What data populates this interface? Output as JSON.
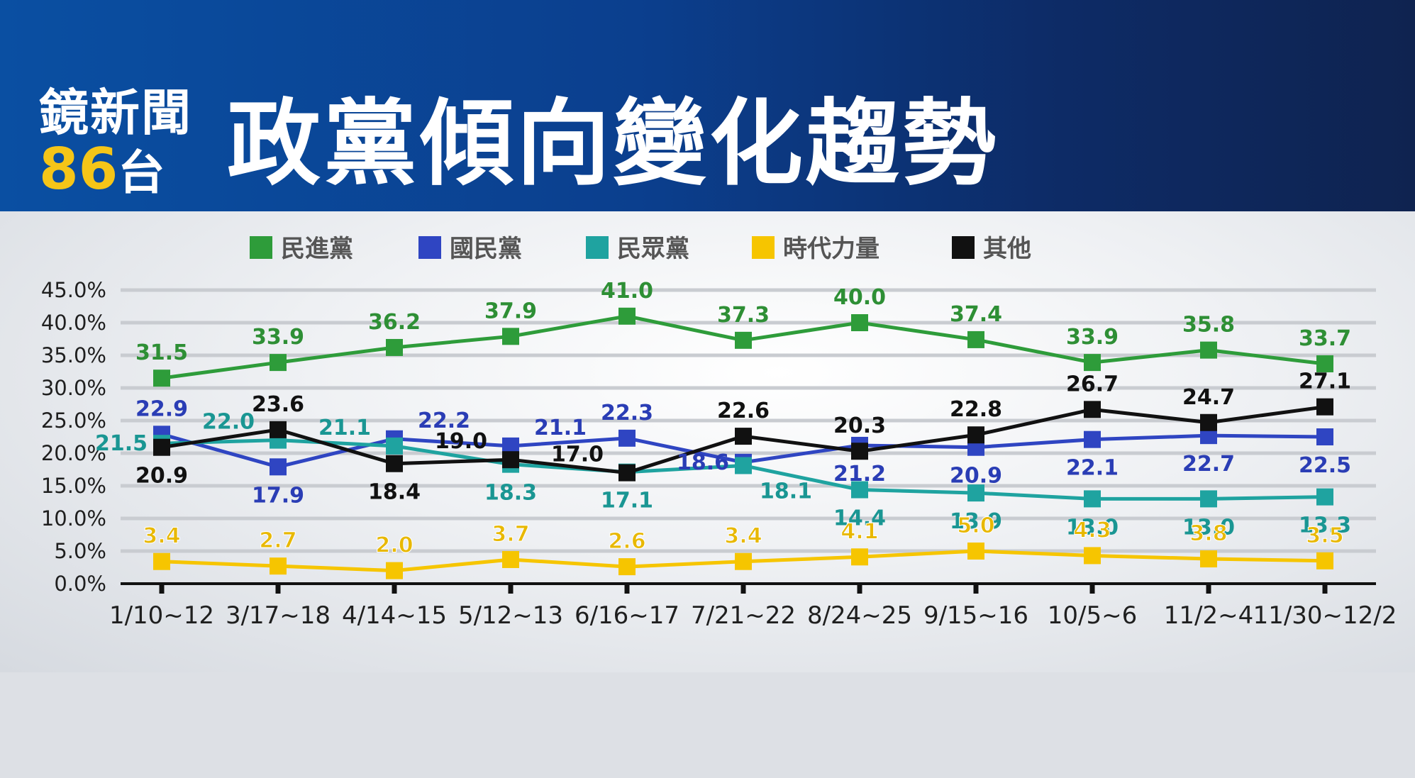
{
  "header": {
    "brand_name": "鏡新聞",
    "brand_channel_number": "86",
    "brand_channel_suffix": "台",
    "title": "政黨傾向變化趨勢"
  },
  "colors": {
    "header_blue": "#0a4fa2",
    "brand_accent": "#f5c518"
  },
  "chart_data": {
    "type": "line",
    "title": "",
    "xlabel": "",
    "ylabel": "",
    "categories": [
      "1/10~12",
      "3/17~18",
      "4/14~15",
      "5/12~13",
      "6/16~17",
      "7/21~22",
      "8/24~25",
      "9/15~16",
      "10/5~6",
      "11/2~4",
      "11/30~12/2"
    ],
    "y_ticks": [
      "0.0%",
      "5.0%",
      "10.0%",
      "15.0%",
      "20.0%",
      "25.0%",
      "30.0%",
      "35.0%",
      "40.0%",
      "45.0%"
    ],
    "ylim": [
      0,
      45
    ],
    "grid": true,
    "legend_position": "top",
    "series": [
      {
        "name": "民進黨",
        "color": "#2e9c3a",
        "label_color": "#2e8f35",
        "values": [
          31.5,
          33.9,
          36.2,
          37.9,
          41.0,
          37.3,
          40.0,
          37.4,
          33.9,
          35.8,
          33.7
        ],
        "labels": [
          "31.5",
          "33.9",
          "36.2",
          "37.9",
          "41.0",
          "37.3",
          "40.0",
          "37.4",
          "33.9",
          "35.8",
          "33.7"
        ],
        "label_pos": [
          "above",
          "above",
          "above",
          "above",
          "above",
          "above",
          "above",
          "above",
          "above",
          "above",
          "above"
        ]
      },
      {
        "name": "國民黨",
        "color": "#2f45c2",
        "label_color": "#2a3db5",
        "values": [
          22.9,
          17.9,
          22.2,
          21.1,
          22.3,
          18.6,
          21.2,
          20.9,
          22.1,
          22.7,
          22.5
        ],
        "labels": [
          "22.9",
          "17.9",
          "22.2",
          "21.1",
          "22.3",
          "18.6",
          "21.2",
          "20.9",
          "22.1",
          "22.7",
          "22.5"
        ],
        "label_pos": [
          "above",
          "below",
          "above-right",
          "above-right",
          "above",
          "left",
          "below",
          "below",
          "below",
          "below",
          "below"
        ]
      },
      {
        "name": "民眾黨",
        "color": "#1fa3a0",
        "label_color": "#1a9693",
        "values": [
          21.5,
          22.0,
          21.1,
          18.3,
          17.1,
          18.1,
          14.4,
          13.9,
          13.0,
          13.0,
          13.3
        ],
        "labels": [
          "21.5",
          "22.0",
          "21.1",
          "18.3",
          "17.1",
          "18.1",
          "14.4",
          "13.9",
          "13.0",
          "13.0",
          "13.3"
        ],
        "label_pos": [
          "left",
          "above-left",
          "above-left",
          "below",
          "below",
          "below-right",
          "below",
          "below",
          "below",
          "below",
          "below"
        ]
      },
      {
        "name": "時代力量",
        "color": "#f6c500",
        "label_color": "#e8b800",
        "values": [
          3.4,
          2.7,
          2.0,
          3.7,
          2.6,
          3.4,
          4.1,
          5.0,
          4.3,
          3.8,
          3.5
        ],
        "labels": [
          "3.4",
          "2.7",
          "2.0",
          "3.7",
          "2.6",
          "3.4",
          "4.1",
          "5.0",
          "4.3",
          "3.8",
          "3.5"
        ],
        "label_pos": [
          "above",
          "above",
          "above",
          "above",
          "above",
          "above",
          "above",
          "above",
          "above",
          "above",
          "above"
        ]
      },
      {
        "name": "其他",
        "color": "#111111",
        "label_color": "#111111",
        "values": [
          20.9,
          23.6,
          18.4,
          19.0,
          17.0,
          22.6,
          20.3,
          22.8,
          26.7,
          24.7,
          27.1
        ],
        "labels": [
          "20.9",
          "23.6",
          "18.4",
          "19.0",
          "17.0",
          "22.6",
          "20.3",
          "22.8",
          "26.7",
          "24.7",
          "27.1"
        ],
        "label_pos": [
          "below",
          "above",
          "below",
          "above-left",
          "above-left",
          "above",
          "above",
          "above",
          "above",
          "above",
          "above"
        ]
      }
    ]
  }
}
